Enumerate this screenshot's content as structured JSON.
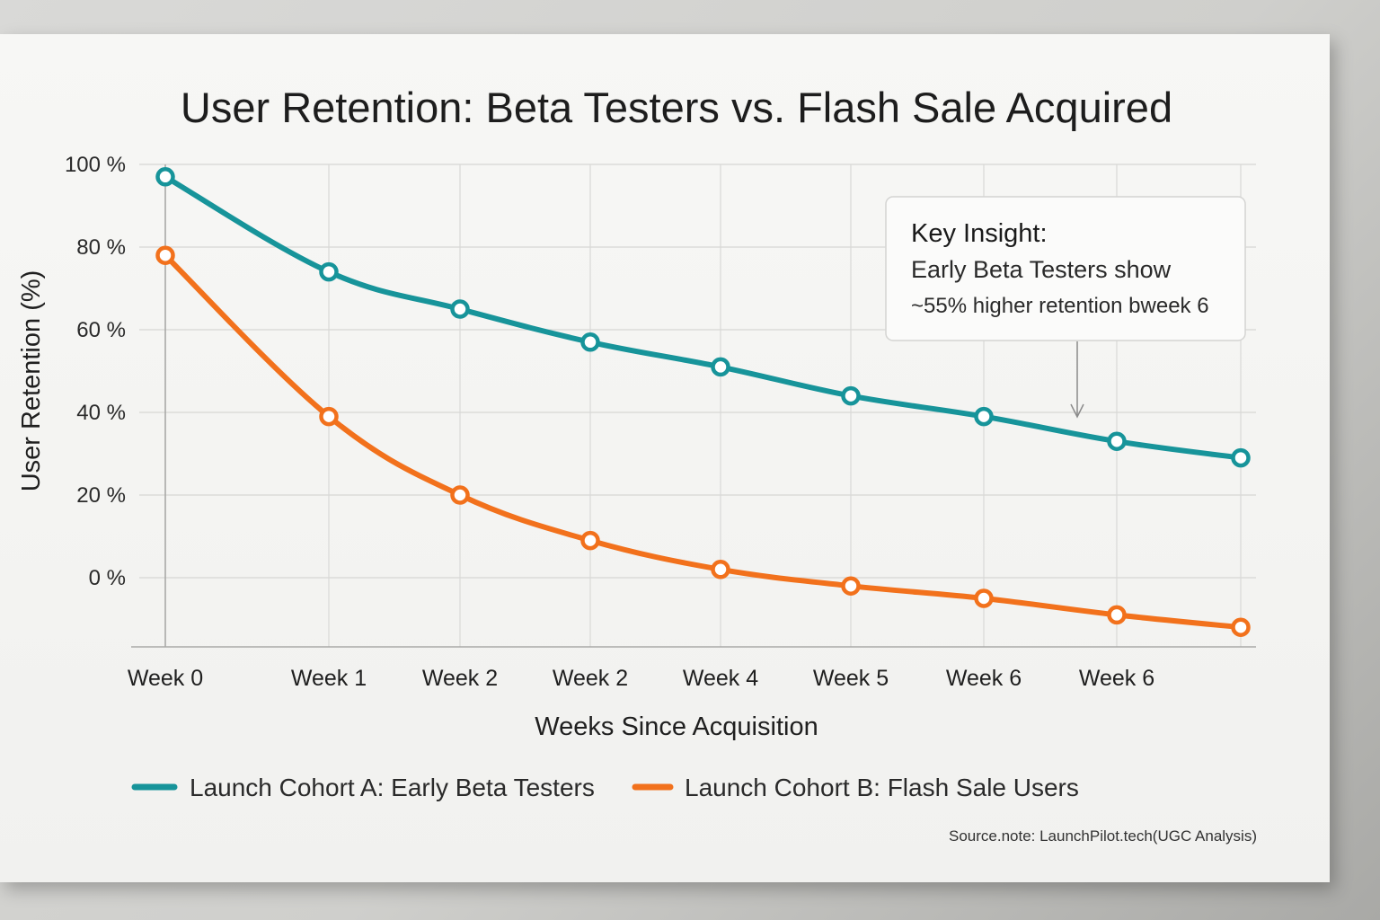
{
  "chart_data": {
    "type": "line",
    "title": "User Retention: Beta Testers vs. Flash Sale Acquired",
    "xlabel": "Weeks Since Acquisition",
    "ylabel": "User Retention (%)",
    "x_tick_labels": [
      "Week 0",
      "Week 1",
      "Week 2",
      "Week 2",
      "Week 4",
      "Week 5",
      "Week 6",
      "Week 6"
    ],
    "y_tick_labels": [
      "100 %",
      "80 %",
      "60 %",
      "40 %",
      "20 %",
      "0 %"
    ],
    "y_tick_values": [
      100,
      80,
      60,
      40,
      20,
      0
    ],
    "ylim": [
      -17,
      100
    ],
    "x_positions": [
      0,
      1,
      2,
      3,
      4,
      5,
      6,
      7,
      8
    ],
    "series": [
      {
        "name": "Launch Cohort A: Early Beta Testers",
        "color": "#17949a",
        "values": [
          97,
          74,
          65,
          57,
          51,
          44,
          39,
          33,
          29
        ]
      },
      {
        "name": "Launch Cohort B: Flash Sale Users",
        "color": "#f2711c",
        "values": [
          78,
          39,
          20,
          9,
          2,
          -2,
          -5,
          -9,
          -12
        ]
      }
    ],
    "annotation": {
      "heading": "Key Insight:",
      "line1": "Early Beta Testers show",
      "line2": "~55% higher retention bweek 6"
    },
    "source": "Source.note:  LaunchPilot.tech(UGC Analysis)"
  }
}
